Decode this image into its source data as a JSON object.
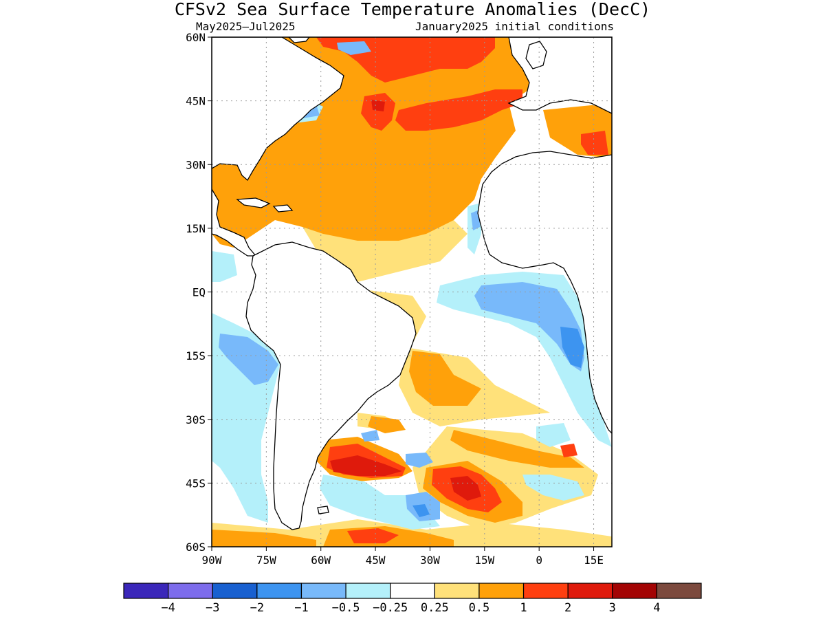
{
  "title": "CFSv2 Sea Surface Temperature Anomalies (DecC)",
  "subtitle_left": "May2025—Jul2025",
  "subtitle_right": "January2025 initial conditions",
  "map": {
    "lon_range": [
      -90,
      20
    ],
    "lat_range": [
      -60,
      60
    ],
    "lat_ticks": [
      {
        "value": 60,
        "label": "60N"
      },
      {
        "value": 45,
        "label": "45N"
      },
      {
        "value": 30,
        "label": "30N"
      },
      {
        "value": 15,
        "label": "15N"
      },
      {
        "value": 0,
        "label": "EQ"
      },
      {
        "value": -15,
        "label": "15S"
      },
      {
        "value": -30,
        "label": "30S"
      },
      {
        "value": -45,
        "label": "45S"
      },
      {
        "value": -60,
        "label": "60S"
      }
    ],
    "lon_ticks": [
      {
        "value": -90,
        "label": "90W"
      },
      {
        "value": -75,
        "label": "75W"
      },
      {
        "value": -60,
        "label": "60W"
      },
      {
        "value": -45,
        "label": "45W"
      },
      {
        "value": -30,
        "label": "30W"
      },
      {
        "value": -15,
        "label": "15W"
      },
      {
        "value": 0,
        "label": "0"
      },
      {
        "value": 15,
        "label": "15E"
      }
    ],
    "grid": true
  },
  "colorbar": {
    "colors": [
      "#3b27ba",
      "#7d6cec",
      "#1860d0",
      "#3d94f0",
      "#78b9fa",
      "#b4f0fa",
      "#ffffff",
      "#ffe17a",
      "#ffa10a",
      "#ff3f10",
      "#df1a0c",
      "#a30404",
      "#7c4a3e"
    ],
    "boundaries": [
      "−4",
      "−3",
      "−2",
      "−1",
      "−0.5",
      "−0.25",
      "0.25",
      "0.5",
      "1",
      "2",
      "3",
      "4"
    ]
  }
}
